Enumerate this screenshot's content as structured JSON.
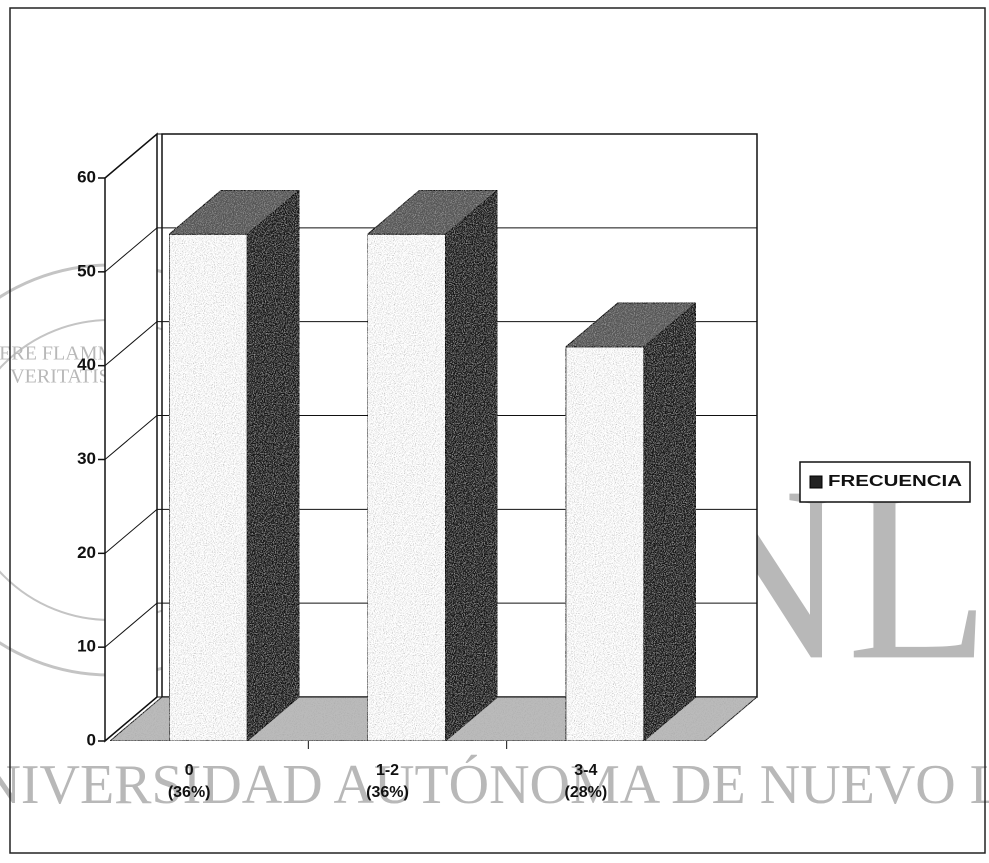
{
  "chart_data": {
    "type": "bar3d",
    "categories": [
      "0",
      "1-2",
      "3-4"
    ],
    "category_notes": [
      "(36%)",
      "(36%)",
      "(28%)"
    ],
    "series": [
      {
        "name": "FRECUENCIA",
        "color": "#ffffff",
        "values": [
          54,
          54,
          42
        ]
      }
    ],
    "ylim": [
      0,
      60
    ],
    "yticks": [
      0,
      10,
      20,
      30,
      40,
      50,
      60
    ],
    "grid": true,
    "legend": "right"
  },
  "watermark": {
    "mark": "UANL",
    "university": "UNIVERSIDAD AUTÓNOMA DE NUEVO LEÓN",
    "motto": [
      "ALERE FLAMMAM",
      "VERITATIS"
    ]
  }
}
